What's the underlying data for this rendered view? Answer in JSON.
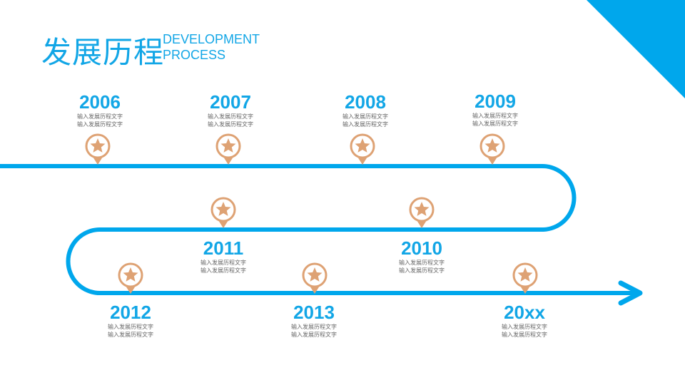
{
  "title": {
    "cn": "发展历程",
    "en_line1": "DEVELOPMENT",
    "en_line2": "PROCESS"
  },
  "colors": {
    "accent": "#00a7ec",
    "pin": "#dea274"
  },
  "milestones": [
    {
      "year": "2006",
      "line1": "输入发展历程文字",
      "line2": "输入发展历程文字"
    },
    {
      "year": "2007",
      "line1": "输入发展历程文字",
      "line2": "输入发展历程文字"
    },
    {
      "year": "2008",
      "line1": "输入发展历程文字",
      "line2": "输入发展历程文字"
    },
    {
      "year": "2009",
      "line1": "输入发展历程文字",
      "line2": "输入发展历程文字"
    },
    {
      "year": "2010",
      "line1": "输入发展历程文字",
      "line2": "输入发展历程文字"
    },
    {
      "year": "2011",
      "line1": "输入发展历程文字",
      "line2": "输入发展历程文字"
    },
    {
      "year": "2012",
      "line1": "输入发展历程文字",
      "line2": "输入发展历程文字"
    },
    {
      "year": "2013",
      "line1": "输入发展历程文字",
      "line2": "输入发展历程文字"
    },
    {
      "year": "20xx",
      "line1": "输入发展历程文字",
      "line2": "输入发展历程文字"
    }
  ]
}
